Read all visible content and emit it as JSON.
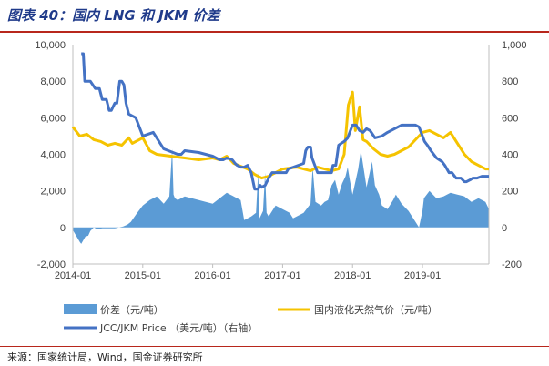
{
  "title": "图表 40：国内 LNG 和 JKM 价差",
  "source": "来源：国家统计局，Wind，国金证券研究所",
  "chart_data": {
    "type": "bar+line",
    "x_ticks": [
      "2014-01",
      "2015-01",
      "2016-01",
      "2017-01",
      "2018-01",
      "2019-01"
    ],
    "x_range": [
      2014.0,
      2019.95
    ],
    "left_axis": {
      "ylim": [
        -2000,
        10000
      ],
      "ticks": [
        "-2,000",
        "0",
        "2,000",
        "4,000",
        "6,000",
        "8,000",
        "10,000"
      ]
    },
    "right_axis": {
      "ylim": [
        -200,
        1000
      ],
      "ticks": [
        "-200",
        "0",
        "200",
        "400",
        "600",
        "800",
        "1,000"
      ]
    },
    "grid": false,
    "legend_position": "bottom",
    "series": [
      {
        "name": "价差（元/吨）",
        "type": "area",
        "axis": "left",
        "color": "#5b9bd5",
        "x": [
          2014.0,
          2014.1,
          2014.12,
          2014.18,
          2014.22,
          2014.25,
          2014.3,
          2014.35,
          2014.42,
          2014.6,
          2014.72,
          2014.78,
          2014.83,
          2014.92,
          2015.0,
          2015.1,
          2015.2,
          2015.3,
          2015.38,
          2015.42,
          2015.44,
          2015.46,
          2015.5,
          2015.6,
          2015.7,
          2015.8,
          2015.9,
          2016.0,
          2016.1,
          2016.2,
          2016.3,
          2016.4,
          2016.45,
          2016.55,
          2016.62,
          2016.65,
          2016.67,
          2016.72,
          2016.75,
          2016.77,
          2016.8,
          2016.9,
          2017.0,
          2017.1,
          2017.15,
          2017.2,
          2017.3,
          2017.4,
          2017.43,
          2017.47,
          2017.55,
          2017.6,
          2017.65,
          2017.7,
          2017.75,
          2017.8,
          2017.85,
          2017.9,
          2017.93,
          2017.96,
          2018.0,
          2018.08,
          2018.12,
          2018.2,
          2018.28,
          2018.32,
          2018.38,
          2018.42,
          2018.5,
          2018.58,
          2018.62,
          2018.7,
          2018.8,
          2018.9,
          2018.95,
          2019.0,
          2019.02,
          2019.1,
          2019.2,
          2019.3,
          2019.4,
          2019.5,
          2019.6,
          2019.7,
          2019.8,
          2019.9,
          2019.95
        ],
        "values": [
          -150,
          -800,
          -900,
          -500,
          -450,
          -200,
          0,
          -100,
          -50,
          -50,
          50,
          150,
          300,
          800,
          1200,
          1500,
          1700,
          1300,
          1700,
          4300,
          1800,
          1600,
          1500,
          1700,
          1600,
          1500,
          1400,
          1300,
          1600,
          1900,
          1700,
          1500,
          400,
          600,
          800,
          3000,
          500,
          900,
          3000,
          800,
          600,
          1200,
          1000,
          800,
          500,
          600,
          800,
          1300,
          3300,
          1400,
          1200,
          1400,
          1500,
          2300,
          2600,
          1800,
          2400,
          2800,
          3300,
          2600,
          1800,
          3200,
          4200,
          2200,
          3600,
          2300,
          1800,
          1200,
          1000,
          1500,
          1800,
          1300,
          900,
          300,
          0,
          900,
          1600,
          2000,
          1600,
          1700,
          1900,
          1800,
          1700,
          1400,
          1600,
          1400,
          1000
        ]
      },
      {
        "name": "国内液化天然气价（元/吨）",
        "type": "line",
        "axis": "left",
        "color": "#f5c300",
        "x": [
          2014.0,
          2014.1,
          2014.2,
          2014.3,
          2014.4,
          2014.5,
          2014.6,
          2014.7,
          2014.8,
          2014.85,
          2014.9,
          2015.0,
          2015.1,
          2015.2,
          2015.4,
          2015.6,
          2015.8,
          2016.0,
          2016.1,
          2016.2,
          2016.3,
          2016.5,
          2016.6,
          2016.7,
          2016.8,
          2016.9,
          2017.0,
          2017.2,
          2017.4,
          2017.5,
          2017.6,
          2017.7,
          2017.8,
          2017.88,
          2017.94,
          2018.0,
          2018.04,
          2018.1,
          2018.15,
          2018.2,
          2018.3,
          2018.4,
          2018.5,
          2018.6,
          2018.7,
          2018.8,
          2018.9,
          2019.0,
          2019.1,
          2019.2,
          2019.3,
          2019.4,
          2019.5,
          2019.6,
          2019.7,
          2019.8,
          2019.9,
          2019.95
        ],
        "values": [
          5500,
          5000,
          5100,
          4800,
          4700,
          4500,
          4600,
          4500,
          4900,
          4600,
          4700,
          4900,
          4200,
          4000,
          3900,
          3800,
          3700,
          3800,
          3700,
          3900,
          3500,
          3200,
          2900,
          2700,
          2800,
          3000,
          3200,
          3300,
          3100,
          3300,
          3200,
          3100,
          3200,
          4000,
          6700,
          7400,
          5300,
          6600,
          4800,
          4700,
          4300,
          4000,
          3900,
          4000,
          4200,
          4400,
          4800,
          5200,
          5300,
          5100,
          4900,
          5200,
          4600,
          4000,
          3600,
          3400,
          3200,
          3200
        ]
      },
      {
        "name": "JCC/JKM Price （美元/吨）（右轴）",
        "type": "line",
        "axis": "right",
        "color": "#4472c4",
        "x": [
          2014.12,
          2014.15,
          2014.17,
          2014.25,
          2014.32,
          2014.38,
          2014.42,
          2014.48,
          2014.52,
          2014.55,
          2014.6,
          2014.63,
          2014.67,
          2014.7,
          2014.73,
          2014.76,
          2014.8,
          2014.85,
          2014.9,
          2014.95,
          2015.0,
          2015.15,
          2015.3,
          2015.5,
          2015.55,
          2015.6,
          2015.8,
          2016.0,
          2016.1,
          2016.15,
          2016.2,
          2016.28,
          2016.32,
          2016.35,
          2016.4,
          2016.45,
          2016.5,
          2016.55,
          2016.6,
          2016.65,
          2016.68,
          2016.7,
          2016.75,
          2016.8,
          2016.85,
          2016.9,
          2016.92,
          2016.95,
          2017.05,
          2017.08,
          2017.3,
          2017.33,
          2017.36,
          2017.4,
          2017.42,
          2017.45,
          2017.5,
          2017.6,
          2017.65,
          2017.7,
          2017.72,
          2017.76,
          2017.8,
          2017.84,
          2017.88,
          2017.93,
          2017.97,
          2018.0,
          2018.05,
          2018.1,
          2018.15,
          2018.2,
          2018.25,
          2018.32,
          2018.42,
          2018.5,
          2018.6,
          2018.7,
          2018.75,
          2018.8,
          2018.9,
          2018.95,
          2019.0,
          2019.03,
          2019.07,
          2019.12,
          2019.2,
          2019.28,
          2019.32,
          2019.38,
          2019.42,
          2019.48,
          2019.55,
          2019.6,
          2019.63,
          2019.68,
          2019.72,
          2019.78,
          2019.85,
          2019.9,
          2019.95
        ],
        "values": [
          950,
          950,
          800,
          800,
          760,
          760,
          700,
          700,
          640,
          640,
          680,
          680,
          800,
          800,
          780,
          680,
          620,
          610,
          600,
          550,
          500,
          520,
          430,
          400,
          400,
          420,
          410,
          390,
          370,
          370,
          380,
          370,
          350,
          340,
          330,
          330,
          340,
          300,
          210,
          210,
          230,
          220,
          230,
          270,
          300,
          300,
          300,
          300,
          300,
          320,
          350,
          420,
          440,
          440,
          380,
          350,
          300,
          300,
          300,
          300,
          340,
          340,
          450,
          460,
          470,
          490,
          530,
          560,
          560,
          530,
          520,
          540,
          530,
          490,
          500,
          520,
          540,
          560,
          560,
          560,
          560,
          550,
          500,
          470,
          450,
          420,
          380,
          360,
          340,
          300,
          300,
          270,
          270,
          250,
          250,
          260,
          270,
          270,
          280,
          280,
          280
        ]
      }
    ]
  }
}
